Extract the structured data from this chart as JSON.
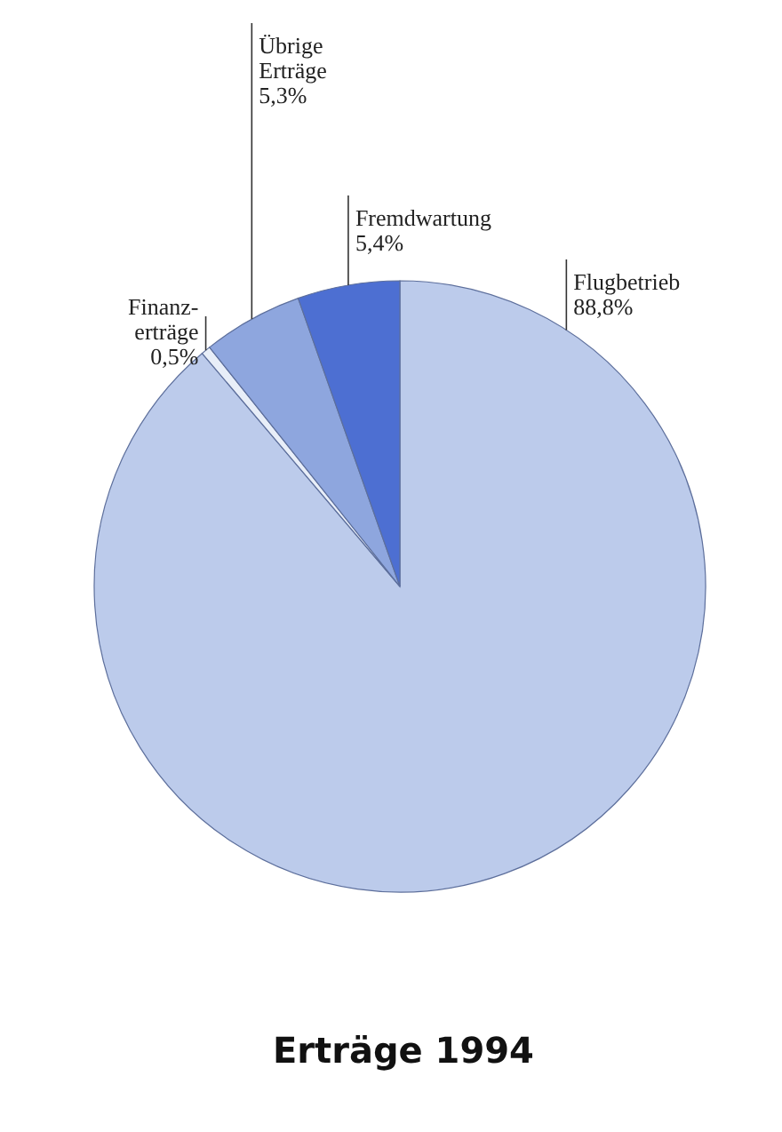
{
  "chart_data": {
    "type": "pie",
    "title": "Erträge 1994",
    "categories": [
      "Flugbetrieb",
      "Finanz-erträge",
      "Übrige Erträge",
      "Fremdwartung"
    ],
    "values": [
      88.8,
      0.5,
      5.3,
      5.4
    ],
    "value_labels": [
      "88,8%",
      "0,5%",
      "5,3%",
      "5,4%"
    ],
    "colors": [
      "#bccbeb",
      "#e8eef8",
      "#8ea6de",
      "#4d6fd2"
    ]
  }
}
